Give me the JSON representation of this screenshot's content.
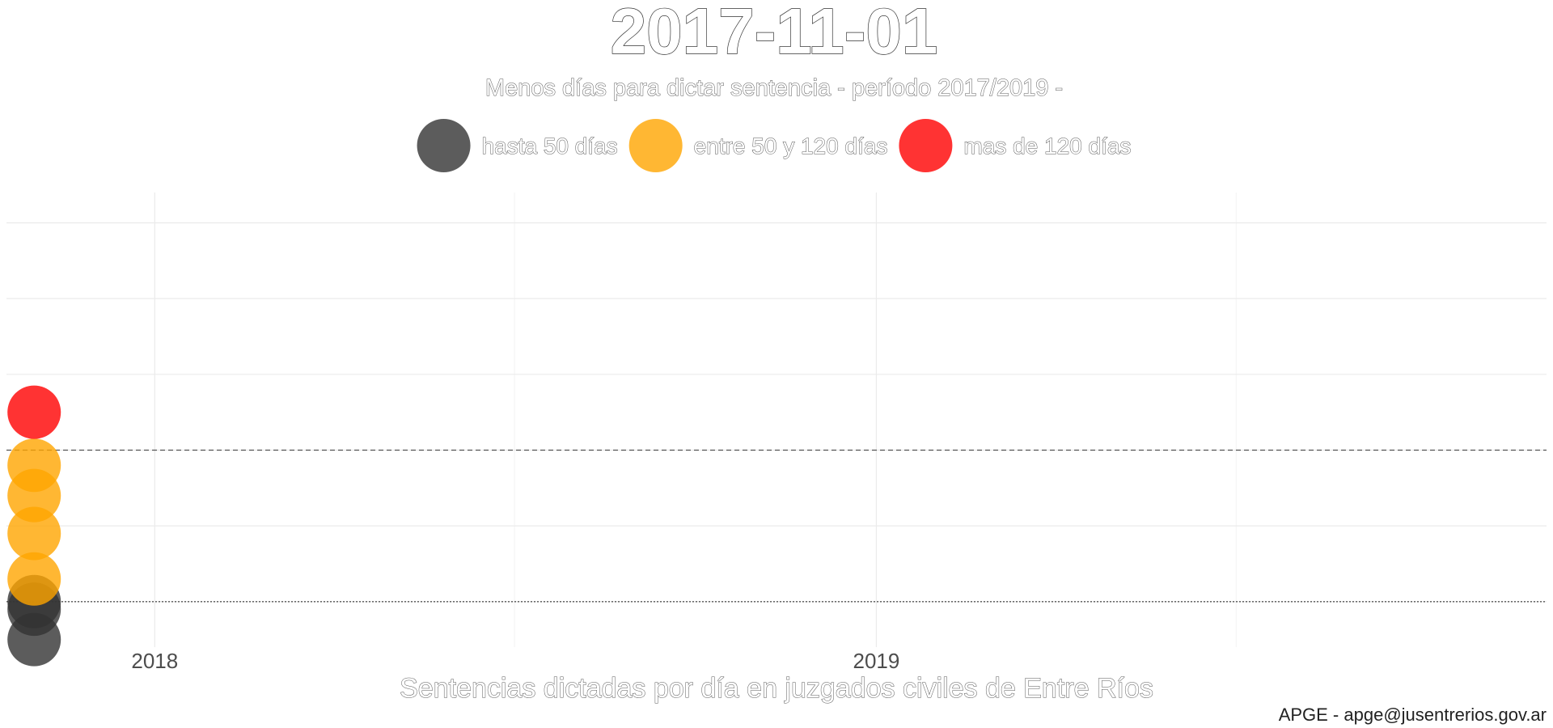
{
  "chart_data": {
    "type": "scatter",
    "title": "2017-11-01",
    "subtitle": "Menos días para dictar sentencia - período 2017/2019 -",
    "xlabel": "Sentencias dictadas por día en juzgados civiles de Entre Ríos",
    "ylabel": "",
    "caption": "APGE - apge@jusentrerios.gov.ar",
    "x_range": [
      "2017-10-18",
      "2019-12-06"
    ],
    "x_ticks": [
      {
        "date": "2018-01-01",
        "label": "2018"
      },
      {
        "date": "2019-01-01",
        "label": "2019"
      }
    ],
    "x_minor_ticks": [
      "2018-07-02",
      "2019-07-02"
    ],
    "y_range": [
      0.4,
      6.4
    ],
    "y_major_ticks": [
      1,
      2,
      3,
      4,
      5,
      6
    ],
    "reference_lines": [
      {
        "y": 3,
        "style": "dashed"
      },
      {
        "y": 1,
        "style": "dotted"
      }
    ],
    "grid": true,
    "legend_position": "top",
    "series": [
      {
        "name": "hasta 50 días",
        "color": "#333333",
        "points": [
          {
            "x": "2017-11-01",
            "y": 0.5
          },
          {
            "x": "2017-11-01",
            "y": 0.9
          },
          {
            "x": "2017-11-01",
            "y": 1.0
          }
        ]
      },
      {
        "name": "entre 50 y 120 días",
        "color": "#FFA500",
        "points": [
          {
            "x": "2017-11-01",
            "y": 1.3
          },
          {
            "x": "2017-11-01",
            "y": 1.9
          },
          {
            "x": "2017-11-01",
            "y": 2.4
          },
          {
            "x": "2017-11-01",
            "y": 2.8
          }
        ]
      },
      {
        "name": "mas de 120 días",
        "color": "#FF0000",
        "points": [
          {
            "x": "2017-11-01",
            "y": 3.5
          }
        ]
      }
    ]
  }
}
